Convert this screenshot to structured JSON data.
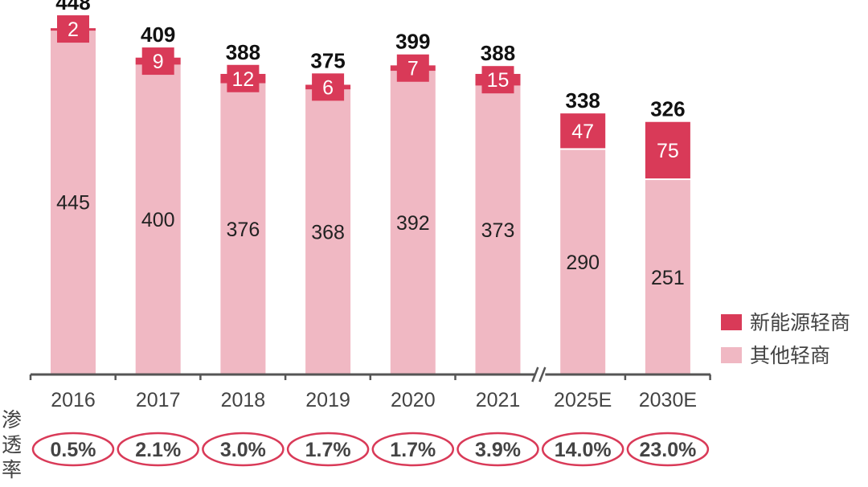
{
  "chart_data": {
    "type": "bar",
    "stacked": true,
    "title": "",
    "xlabel": "",
    "ylabel": "",
    "categories": [
      "2016",
      "2017",
      "2018",
      "2019",
      "2020",
      "2021",
      "2025E",
      "2030E"
    ],
    "series": [
      {
        "name": "其他轻商",
        "color": "#F0B8C3",
        "values": [
          445,
          400,
          376,
          368,
          392,
          373,
          290,
          251
        ]
      },
      {
        "name": "新能源轻商",
        "color": "#D93A58",
        "values": [
          2,
          9,
          12,
          6,
          7,
          15,
          47,
          75
        ]
      }
    ],
    "totals": [
      448,
      409,
      388,
      375,
      399,
      388,
      338,
      326
    ],
    "penetration": {
      "label": "渗透率",
      "values": [
        "0.5%",
        "2.1%",
        "3.0%",
        "1.7%",
        "1.7%",
        "3.9%",
        "14.0%",
        "23.0%"
      ],
      "ellipse_color": "#D93A58"
    },
    "axis_break_after": "2021",
    "ylim": [
      0,
      460
    ],
    "grid": false,
    "legend_position": "right",
    "legend": [
      "新能源轻商",
      "其他轻商"
    ]
  }
}
